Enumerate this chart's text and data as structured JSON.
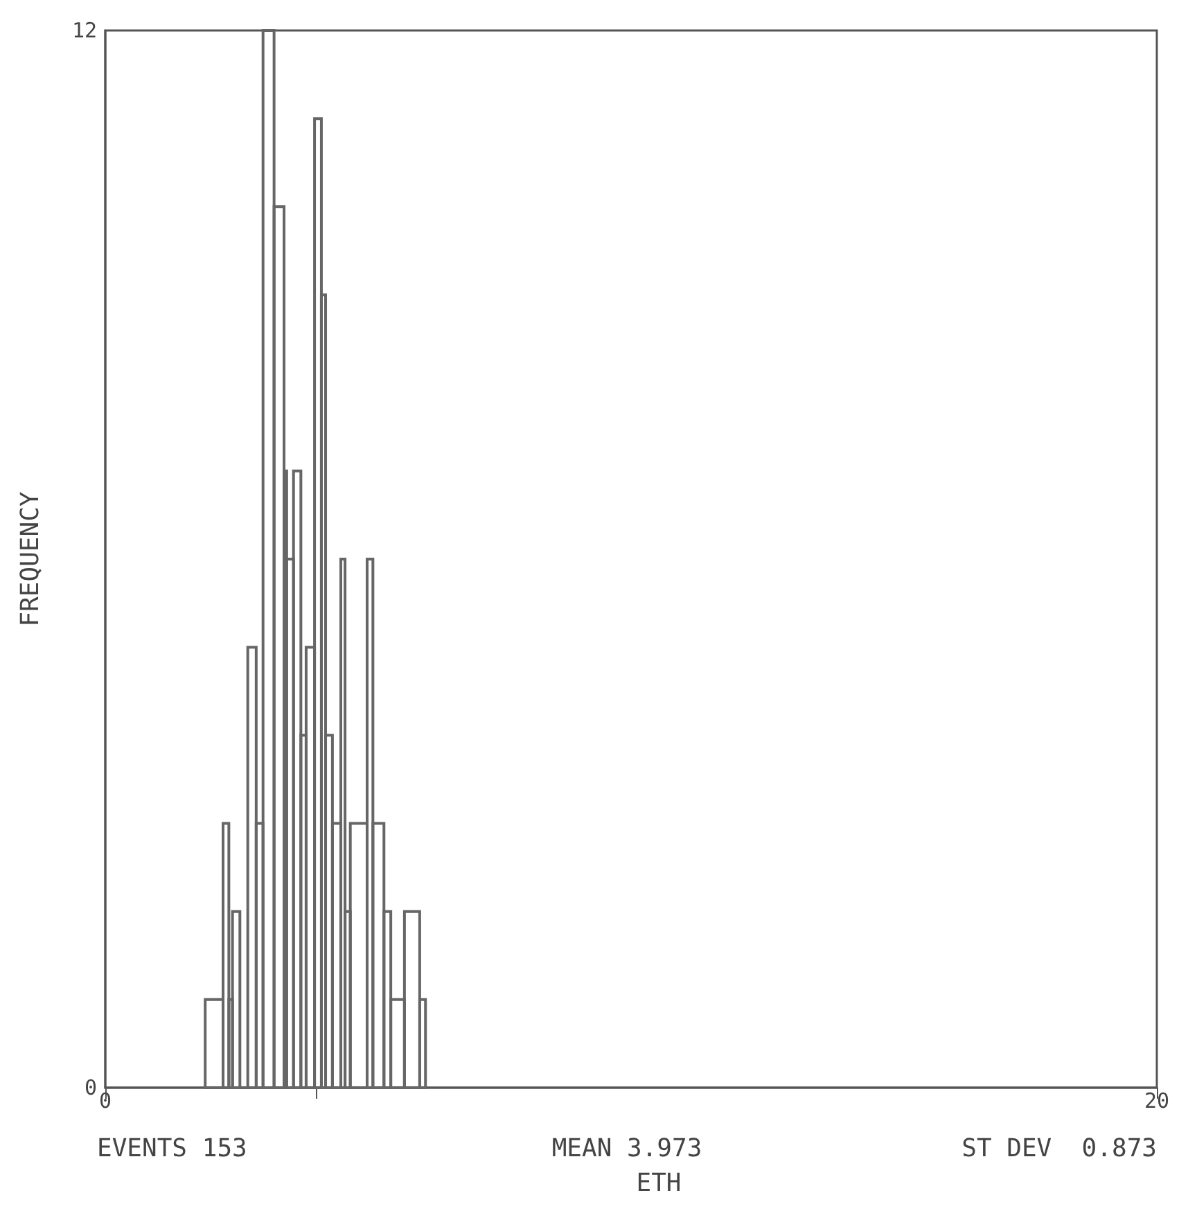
{
  "chart_data": {
    "type": "histogram",
    "xlabel": "ETH",
    "ylabel": "FREQUENCY",
    "bins": [
      1.9,
      2.24,
      2.35,
      2.42,
      2.56,
      2.71,
      2.87,
      3.0,
      3.21,
      3.4,
      3.45,
      3.58,
      3.72,
      3.82,
      3.98,
      4.11,
      4.19,
      4.32,
      4.48,
      4.56,
      4.66,
      4.98,
      5.09,
      5.3,
      5.43,
      5.69,
      5.98,
      6.09
    ],
    "values": [
      1,
      3,
      1,
      2,
      0,
      5,
      3,
      12,
      10,
      7,
      6,
      7,
      4,
      5,
      11,
      9,
      4,
      3,
      6,
      2,
      3,
      6,
      3,
      2,
      1,
      2,
      1
    ],
    "color": "#666666",
    "xlim": [
      0,
      20
    ],
    "xticks": [
      0,
      {
        "value": 4,
        "label": null
      },
      20
    ],
    "ylim": [
      0,
      12
    ],
    "yticks": [
      0,
      12
    ],
    "grid": false,
    "annotations": [
      "EVENTS 153",
      "MEAN 3.973",
      "ST DEV  0.873"
    ]
  }
}
